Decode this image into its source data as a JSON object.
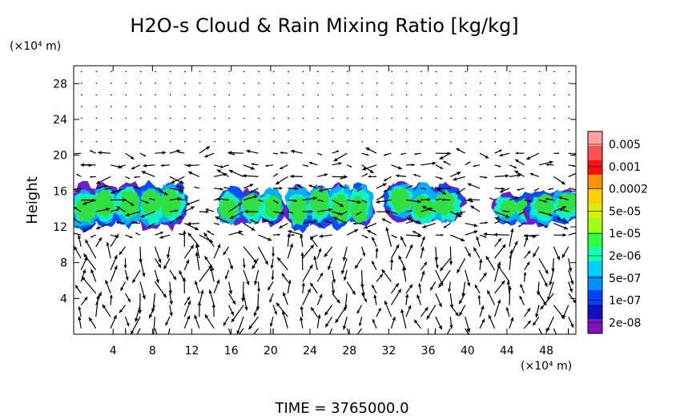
{
  "chart_data": {
    "type": "heatmap",
    "title": "H2O-s Cloud & Rain Mixing Ratio [kg/kg]",
    "ylabel": "Height",
    "x_unit": "(×10⁴ m)",
    "y_unit": "(×10⁴ m)",
    "xlim": [
      0,
      51
    ],
    "ylim": [
      0,
      30
    ],
    "x_ticks": [
      "4",
      "8",
      "12",
      "16",
      "20",
      "24",
      "28",
      "32",
      "36",
      "40",
      "44",
      "48"
    ],
    "y_ticks": [
      "4",
      "8",
      "12",
      "16",
      "20",
      "24",
      "28"
    ],
    "colorbar": {
      "labels": [
        "0.005",
        "0.001",
        "0.0002",
        "5e-05",
        "1e-05",
        "2e-06",
        "5e-07",
        "1e-07",
        "2e-08"
      ],
      "colors": [
        "#ffa0a0",
        "#ff5050",
        "#ff1010",
        "#ff9000",
        "#ffd000",
        "#d8f000",
        "#a0ff10",
        "#30ff40",
        "#10ffb0",
        "#00d0ff",
        "#0090ff",
        "#0040ff",
        "#1010c0",
        "#8010c0"
      ]
    },
    "cloud_clusters": [
      {
        "x": [
          0,
          11
        ],
        "y": [
          12,
          16.5
        ]
      },
      {
        "x": [
          15,
          21
        ],
        "y": [
          12.5,
          16.2
        ]
      },
      {
        "x": [
          22,
          30
        ],
        "y": [
          12,
          16.5
        ]
      },
      {
        "x": [
          32,
          39
        ],
        "y": [
          12.5,
          16.5
        ]
      },
      {
        "x": [
          43,
          47
        ],
        "y": [
          12.5,
          15.5
        ]
      },
      {
        "x": [
          46.5,
          51
        ],
        "y": [
          12.5,
          16
        ]
      }
    ],
    "footer": "TIME  =  3765000.0"
  }
}
